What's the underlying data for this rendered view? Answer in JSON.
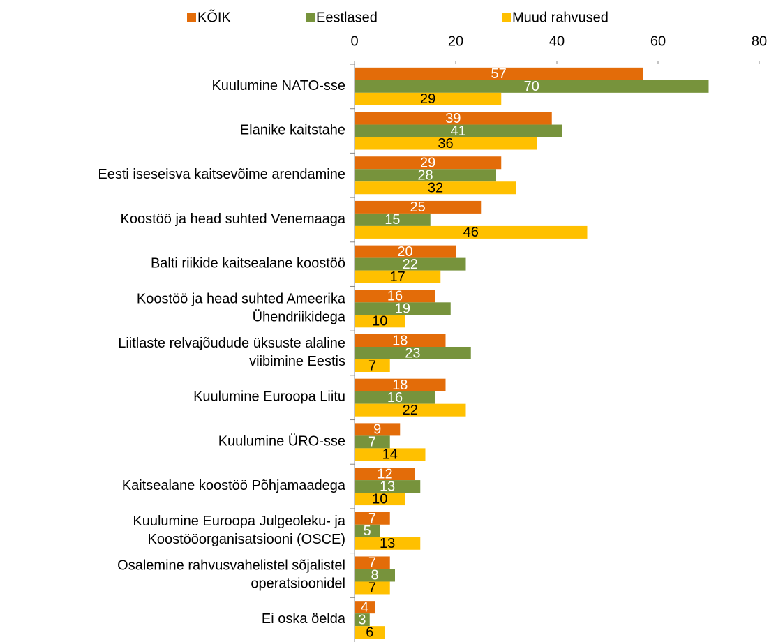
{
  "chart_data": {
    "type": "barh",
    "categories": [
      "Kuulumine NATO-sse",
      "Elanike kaitstahe",
      "Eesti iseseisva kaitsevõime arendamine",
      "Koostöö ja head suhted Venemaaga",
      "Balti riikide kaitsealane koostöö",
      "Koostöö ja head suhted Ameerika\nÜhendriikidega",
      "Liitlaste relvajõudude üksuste alaline\nviibimine Eestis",
      "Kuulumine Euroopa Liitu",
      "Kuulumine ÜRO-sse",
      "Kaitsealane koostöö Põhjamaadega",
      "Kuulumine Euroopa Julgeoleku- ja\nKoostööorganisatsiooni (OSCE)",
      "Osalemine rahvusvahelistel sõjalistel\noperatsioonidel",
      "Ei oska öelda"
    ],
    "series": [
      {
        "name": "KÕIK",
        "color": "#e36c09",
        "label_color": "#ffffff",
        "values": [
          57,
          39,
          29,
          25,
          20,
          16,
          18,
          18,
          9,
          12,
          7,
          7,
          4
        ]
      },
      {
        "name": "Eestlased",
        "color": "#77933c",
        "label_color": "#ffffff",
        "values": [
          70,
          41,
          28,
          15,
          22,
          19,
          23,
          16,
          7,
          13,
          5,
          8,
          3
        ]
      },
      {
        "name": "Muud rahvused",
        "color": "#ffc000",
        "label_color": "#000000",
        "values": [
          29,
          36,
          32,
          46,
          17,
          10,
          7,
          22,
          14,
          10,
          13,
          7,
          6
        ]
      }
    ],
    "xlim": [
      0,
      80
    ],
    "xticks": [
      0,
      20,
      40,
      60,
      80
    ],
    "legend": "top"
  }
}
